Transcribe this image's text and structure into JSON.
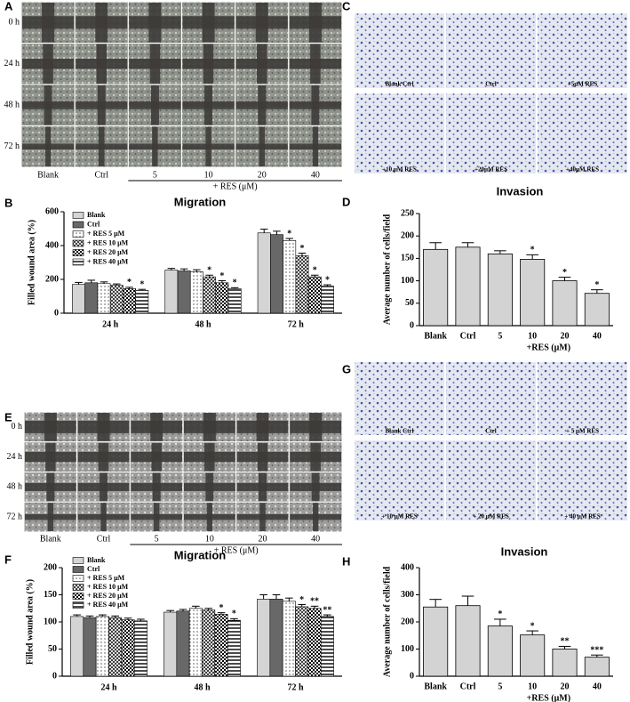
{
  "panels": [
    "A",
    "B",
    "C",
    "D",
    "E",
    "F",
    "G",
    "H"
  ],
  "wound_a": {
    "rows": [
      "0 h",
      "24 h",
      "48 h",
      "72 h"
    ],
    "columns": [
      "Blank",
      "Ctrl",
      "5",
      "10",
      "20",
      "40"
    ],
    "group_label": "+ RES (μM)"
  },
  "transwell_c": {
    "labels": [
      "Blank Ctrl",
      "Ctrl",
      "+5μM RES",
      "+10 μM RES",
      "+20μM RES",
      "+40μM RES"
    ]
  },
  "wound_e": {
    "rows": [
      "0 h",
      "24 h",
      "48 h",
      "72 h"
    ],
    "columns": [
      "Blank",
      "Ctrl",
      "5",
      "10",
      "20",
      "40"
    ],
    "group_label": "+ RES (μM)"
  },
  "transwell_g": {
    "labels": [
      "Blank Ctrl",
      "Ctrl",
      "+ 5 μM RES",
      "+ 10 μM RES",
      "+ 20 μM RES",
      "+ 40 μM RES"
    ]
  },
  "chart_data": [
    {
      "type": "grouped_bar",
      "title": "Migration",
      "y_label": "Filled wound area (%)",
      "categories": [
        "24 h",
        "48 h",
        "72 h"
      ],
      "ylim": [
        0,
        600
      ],
      "yticks": [
        0,
        200,
        400,
        600
      ],
      "legend": "upper left",
      "series": [
        {
          "name": "Blank",
          "color": "#d4d4d4",
          "pattern": "solid",
          "values": [
            170,
            255,
            475
          ],
          "errors": [
            12,
            10,
            22
          ],
          "significance": [
            null,
            null,
            null
          ]
        },
        {
          "name": "Ctrl",
          "color": "#686868",
          "pattern": "solid",
          "values": [
            180,
            250,
            465
          ],
          "errors": [
            15,
            12,
            20
          ],
          "significance": [
            null,
            null,
            null
          ]
        },
        {
          "name": "+ RES 5 μM",
          "color": "#ffffff",
          "pattern": "dots",
          "values": [
            175,
            245,
            430
          ],
          "errors": [
            10,
            12,
            12
          ],
          "significance": [
            null,
            null,
            "*"
          ]
        },
        {
          "name": "+ RES 10 μM",
          "color": "#ffffff",
          "pattern": "cross",
          "values": [
            165,
            215,
            340
          ],
          "errors": [
            8,
            10,
            15
          ],
          "significance": [
            null,
            "*",
            "*"
          ]
        },
        {
          "name": "+ RES 20 μM",
          "color": "#ffffff",
          "pattern": "check",
          "values": [
            145,
            180,
            215
          ],
          "errors": [
            8,
            12,
            10
          ],
          "significance": [
            "*",
            "*",
            "*"
          ]
        },
        {
          "name": "+ RES 40 μM",
          "color": "#ffffff",
          "pattern": "stripes",
          "values": [
            135,
            145,
            160
          ],
          "errors": [
            6,
            6,
            8
          ],
          "significance": [
            "*",
            "*",
            "*"
          ]
        }
      ]
    },
    {
      "type": "bar",
      "title": "Invasion",
      "y_label": "Average number of cells/field",
      "x_label": "+RES (μM)",
      "categories": [
        "Blank",
        "Ctrl",
        "5",
        "10",
        "20",
        "40"
      ],
      "values": [
        170,
        175,
        160,
        148,
        100,
        72
      ],
      "errors": [
        15,
        10,
        7,
        10,
        8,
        8
      ],
      "significance": [
        null,
        null,
        null,
        "*",
        "*",
        "*"
      ],
      "color": "#d3d3d3",
      "ylim": [
        0,
        250
      ],
      "yticks": [
        0,
        50,
        100,
        150,
        200,
        250
      ]
    },
    {
      "type": "grouped_bar",
      "title": "Migration",
      "y_label": "Filled wound area (%)",
      "categories": [
        "24 h",
        "48 h",
        "72 h"
      ],
      "ylim": [
        0,
        200
      ],
      "yticks": [
        0,
        50,
        100,
        150,
        200
      ],
      "legend": "upper left",
      "series": [
        {
          "name": "Blank",
          "color": "#d4d4d4",
          "pattern": "solid",
          "values": [
            110,
            118,
            142
          ],
          "errors": [
            3,
            3,
            8
          ],
          "significance": [
            null,
            null,
            null
          ]
        },
        {
          "name": "Ctrl",
          "color": "#686868",
          "pattern": "solid",
          "values": [
            108,
            120,
            142
          ],
          "errors": [
            3,
            3,
            8
          ],
          "significance": [
            null,
            null,
            null
          ]
        },
        {
          "name": "+ RES 5 μM",
          "color": "#ffffff",
          "pattern": "dots",
          "values": [
            110,
            125,
            138
          ],
          "errors": [
            3,
            4,
            6
          ],
          "significance": [
            null,
            null,
            null
          ]
        },
        {
          "name": "+ RES 10 μM",
          "color": "#ffffff",
          "pattern": "cross",
          "values": [
            108,
            122,
            128
          ],
          "errors": [
            3,
            3,
            4
          ],
          "significance": [
            null,
            null,
            "*"
          ]
        },
        {
          "name": "+ RES 20 μM",
          "color": "#ffffff",
          "pattern": "check",
          "values": [
            104,
            114,
            125
          ],
          "errors": [
            3,
            3,
            4
          ],
          "significance": [
            null,
            "*",
            "**"
          ]
        },
        {
          "name": "+ RES 40 μM",
          "color": "#ffffff",
          "pattern": "stripes",
          "values": [
            102,
            103,
            110
          ],
          "errors": [
            3,
            3,
            3
          ],
          "significance": [
            null,
            "*",
            "**"
          ]
        }
      ]
    },
    {
      "type": "bar",
      "title": "Invasion",
      "y_label": "Average number of cells/field",
      "x_label": "+RES (μM)",
      "categories": [
        "Blank",
        "Ctrl",
        "5",
        "10",
        "20",
        "40"
      ],
      "values": [
        255,
        260,
        185,
        152,
        100,
        70
      ],
      "errors": [
        28,
        35,
        25,
        15,
        10,
        8
      ],
      "significance": [
        null,
        null,
        "*",
        "*",
        "**",
        "***"
      ],
      "color": "#d3d3d3",
      "ylim": [
        0,
        400
      ],
      "yticks": [
        0,
        100,
        200,
        300,
        400
      ]
    }
  ]
}
